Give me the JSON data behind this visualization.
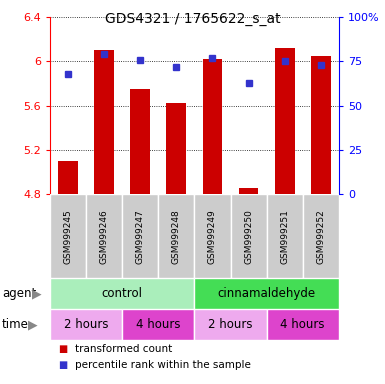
{
  "title": "GDS4321 / 1765622_s_at",
  "samples": [
    "GSM999245",
    "GSM999246",
    "GSM999247",
    "GSM999248",
    "GSM999249",
    "GSM999250",
    "GSM999251",
    "GSM999252"
  ],
  "transformed_counts": [
    5.1,
    6.1,
    5.75,
    5.62,
    6.02,
    4.85,
    6.12,
    6.05
  ],
  "percentile_ranks": [
    68,
    79,
    76,
    72,
    77,
    63,
    75,
    73
  ],
  "ylim_left": [
    4.8,
    6.4
  ],
  "ylim_right": [
    0,
    100
  ],
  "yticks_left": [
    4.8,
    5.2,
    5.6,
    6.0,
    6.4
  ],
  "ytick_labels_left": [
    "4.8",
    "5.2",
    "5.6",
    "6",
    "6.4"
  ],
  "yticks_right": [
    0,
    25,
    50,
    75,
    100
  ],
  "ytick_labels_right": [
    "0",
    "25",
    "50",
    "75",
    "100%"
  ],
  "bar_color": "#cc0000",
  "dot_color": "#3333cc",
  "bar_bottom": 4.8,
  "agent_labels": [
    {
      "label": "control",
      "start": 0,
      "end": 4,
      "color": "#aaeebb"
    },
    {
      "label": "cinnamaldehyde",
      "start": 4,
      "end": 8,
      "color": "#44dd55"
    }
  ],
  "time_colors_alt": [
    "#ee99ee",
    "#dd44dd"
  ],
  "time_labels": [
    {
      "label": "2 hours",
      "start": 0,
      "end": 2,
      "color": "#eeaaee"
    },
    {
      "label": "4 hours",
      "start": 2,
      "end": 4,
      "color": "#dd44cc"
    },
    {
      "label": "2 hours",
      "start": 4,
      "end": 6,
      "color": "#eeaaee"
    },
    {
      "label": "4 hours",
      "start": 6,
      "end": 8,
      "color": "#dd44cc"
    }
  ],
  "sample_bg_color": "#cccccc",
  "legend_items": [
    {
      "label": "transformed count",
      "color": "#cc0000"
    },
    {
      "label": "percentile rank within the sample",
      "color": "#3333cc"
    }
  ]
}
